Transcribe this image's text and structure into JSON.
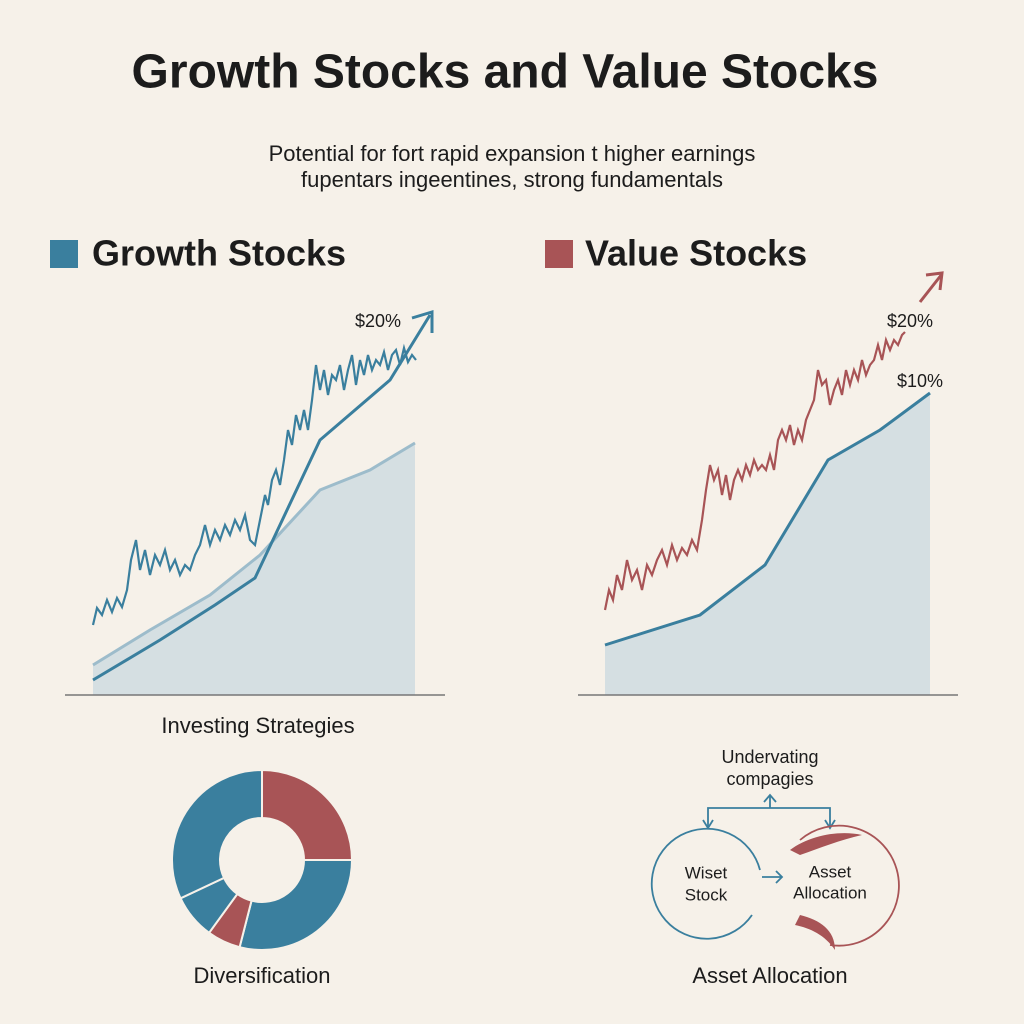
{
  "header": {
    "title": "Growth Stocks and  Value Stocks",
    "subtitle_lines": [
      "Potential for fort rapid expansion t higher earnings",
      "fupentars ingeentines, strong fundamentals"
    ]
  },
  "growth": {
    "legend": "Growth Stocks",
    "label": "$20%"
  },
  "value": {
    "legend": "Value Stocks",
    "labels": [
      "$20%",
      "$10%"
    ]
  },
  "chart_data": {
    "type": "pie",
    "title": "Investing Strategies",
    "caption": "Diversification",
    "values": [
      25,
      29,
      6,
      8,
      32
    ],
    "colors": [
      "#a85456",
      "#3a7f9e",
      "#a85456",
      "#3a7f9e",
      "#3a7f9e"
    ],
    "donut": true
  },
  "diagram": {
    "top_lines": [
      "Undervating",
      "compagies"
    ],
    "left_lines": [
      "Wiset",
      "Stock"
    ],
    "right_lines": [
      "Asset",
      "Allocation"
    ],
    "caption": "Asset Allocation"
  }
}
